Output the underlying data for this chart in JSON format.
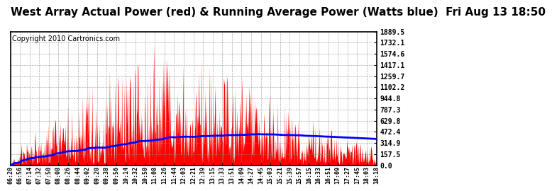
{
  "title": "West Array Actual Power (red) & Running Average Power (Watts blue)  Fri Aug 13 18:50",
  "copyright": "Copyright 2010 Cartronics.com",
  "yticks": [
    0.0,
    157.5,
    314.9,
    472.4,
    629.8,
    787.3,
    944.8,
    1102.2,
    1259.7,
    1417.1,
    1574.6,
    1732.1,
    1889.5
  ],
  "xtick_labels": [
    "06:20",
    "06:56",
    "07:14",
    "07:32",
    "07:50",
    "08:08",
    "08:26",
    "08:44",
    "09:02",
    "09:20",
    "09:38",
    "09:56",
    "10:14",
    "10:32",
    "10:50",
    "11:08",
    "11:26",
    "11:44",
    "12:03",
    "12:21",
    "12:39",
    "13:15",
    "13:33",
    "13:51",
    "14:09",
    "14:27",
    "14:45",
    "15:03",
    "15:21",
    "15:39",
    "15:57",
    "16:15",
    "16:33",
    "16:51",
    "17:09",
    "17:27",
    "17:45",
    "18:03",
    "18:18"
  ],
  "ymax": 1889.5,
  "ymin": 0.0,
  "background_color": "#ffffff",
  "fill_color": "#ff0000",
  "line_color": "#0000ff",
  "grid_color": "#888888",
  "title_fontsize": 11,
  "copyright_fontsize": 7
}
